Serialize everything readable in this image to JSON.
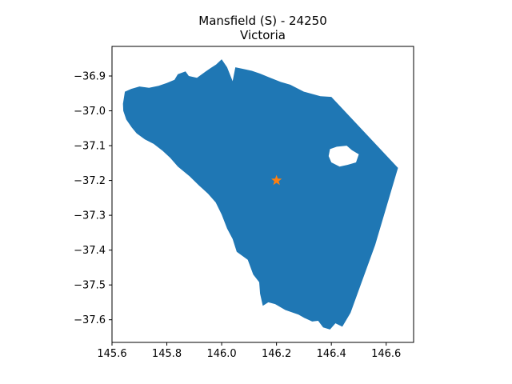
{
  "chart_data": {
    "type": "map",
    "title": "Mansfield (S) - 24250",
    "subtitle": "Victoria",
    "xlim": [
      145.6,
      146.7
    ],
    "ylim": [
      -37.665,
      -36.815
    ],
    "xticks": [
      145.6,
      145.8,
      146.0,
      146.2,
      146.4,
      146.6
    ],
    "xtick_labels": [
      "145.6",
      "145.8",
      "146.0",
      "146.2",
      "146.4",
      "146.6"
    ],
    "yticks": [
      -36.9,
      -37.0,
      -37.1,
      -37.2,
      -37.3,
      -37.4,
      -37.5,
      -37.6
    ],
    "ytick_labels": [
      "−36.9",
      "−37.0",
      "−37.1",
      "−37.2",
      "−37.3",
      "−37.4",
      "−37.5",
      "−37.6"
    ],
    "grid": false,
    "region_color": "#1f77b4",
    "marker_color": "#ff7f0e",
    "marker_shape": "star",
    "marker": {
      "lon": 146.2,
      "lat": -37.2
    },
    "outline": [
      [
        145.64,
        -36.98
      ],
      [
        145.647,
        -36.945
      ],
      [
        145.67,
        -36.937
      ],
      [
        145.7,
        -36.93
      ],
      [
        145.735,
        -36.934
      ],
      [
        145.77,
        -36.928
      ],
      [
        145.8,
        -36.92
      ],
      [
        145.828,
        -36.911
      ],
      [
        145.84,
        -36.895
      ],
      [
        145.868,
        -36.887
      ],
      [
        145.88,
        -36.9
      ],
      [
        145.91,
        -36.905
      ],
      [
        145.94,
        -36.888
      ],
      [
        145.96,
        -36.877
      ],
      [
        145.98,
        -36.867
      ],
      [
        146.0,
        -36.852
      ],
      [
        146.02,
        -36.875
      ],
      [
        146.04,
        -36.915
      ],
      [
        146.05,
        -36.875
      ],
      [
        146.08,
        -36.88
      ],
      [
        146.11,
        -36.885
      ],
      [
        146.14,
        -36.893
      ],
      [
        146.17,
        -36.903
      ],
      [
        146.215,
        -36.917
      ],
      [
        146.25,
        -36.925
      ],
      [
        146.3,
        -36.945
      ],
      [
        146.36,
        -36.958
      ],
      [
        146.4,
        -36.96
      ],
      [
        146.643,
        -37.164
      ],
      [
        146.56,
        -37.385
      ],
      [
        146.47,
        -37.58
      ],
      [
        146.44,
        -37.62
      ],
      [
        146.415,
        -37.61
      ],
      [
        146.395,
        -37.628
      ],
      [
        146.37,
        -37.622
      ],
      [
        146.352,
        -37.603
      ],
      [
        146.33,
        -37.605
      ],
      [
        146.302,
        -37.595
      ],
      [
        146.28,
        -37.585
      ],
      [
        146.232,
        -37.572
      ],
      [
        146.195,
        -37.555
      ],
      [
        146.17,
        -37.55
      ],
      [
        146.15,
        -37.56
      ],
      [
        146.14,
        -37.525
      ],
      [
        146.137,
        -37.492
      ],
      [
        146.115,
        -37.47
      ],
      [
        146.095,
        -37.428
      ],
      [
        146.055,
        -37.405
      ],
      [
        146.04,
        -37.368
      ],
      [
        146.02,
        -37.338
      ],
      [
        146.0,
        -37.298
      ],
      [
        145.978,
        -37.263
      ],
      [
        145.95,
        -37.238
      ],
      [
        145.918,
        -37.215
      ],
      [
        145.883,
        -37.188
      ],
      [
        145.84,
        -37.16
      ],
      [
        145.812,
        -37.135
      ],
      [
        145.785,
        -37.115
      ],
      [
        145.752,
        -37.095
      ],
      [
        145.72,
        -37.082
      ],
      [
        145.69,
        -37.065
      ],
      [
        145.672,
        -37.048
      ],
      [
        145.652,
        -37.025
      ],
      [
        145.641,
        -37.0
      ]
    ],
    "holes": [
      [
        [
          146.456,
          -37.1
        ],
        [
          146.475,
          -37.113
        ],
        [
          146.5,
          -37.125
        ],
        [
          146.49,
          -37.148
        ],
        [
          146.46,
          -37.155
        ],
        [
          146.43,
          -37.16
        ],
        [
          146.4,
          -37.148
        ],
        [
          146.39,
          -37.13
        ],
        [
          146.395,
          -37.11
        ],
        [
          146.42,
          -37.103
        ]
      ]
    ]
  }
}
